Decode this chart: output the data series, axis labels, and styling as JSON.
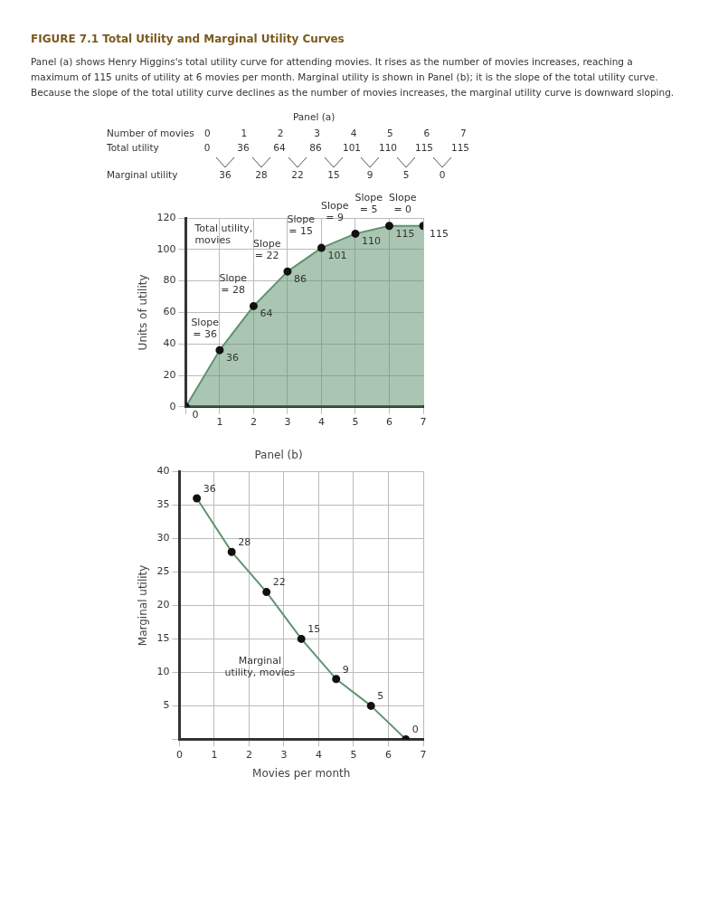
{
  "chart_data": [
    {
      "type": "other",
      "title": "FIGURE 7.1 Total Utility and Marginal Utility Curves",
      "subtitle": "Panel (a) shows Henry Higgins's total utility curve for attending movies. It rises as the number of movies increases, reaching a maximum of 115 units of utility at 6 movies per month. Marginal utility is shown in Panel (b); it is the slope of the total utility curve. Because the slope of the total utility curve declines as the number of movies increases, the marginal utility curve is downward sloping.",
      "annotations": [
        "Panel (a)",
        "Number of movies",
        "0 1 2 3 4 5 6 7",
        "Total utility",
        "0",
        "36",
        "64",
        "86",
        "101",
        "110",
        "115",
        "115",
        "Marginal utility",
        "36",
        "28",
        "22",
        "15",
        "9",
        "5",
        "0"
      ]
    },
    {
      "type": "area",
      "x": [
        0,
        1,
        2,
        3,
        4,
        5,
        6,
        7
      ],
      "series": [
        {
          "color": "#5f9470",
          "values": [
            0,
            36,
            64,
            86,
            101,
            110,
            115,
            115
          ]
        }
      ],
      "xlim": [
        0,
        7
      ],
      "xticks": [
        {
          "value": 0,
          "label": null
        },
        1,
        2,
        3,
        4,
        5,
        6,
        7
      ],
      "ylim": [
        0,
        120
      ],
      "yticks": [
        0,
        20,
        40,
        60,
        80,
        100,
        120
      ],
      "ylabel": "Units of utility",
      "grid": true,
      "marker": "circle",
      "data_labels": true,
      "annotations": [
        "Total utility,\nmovies",
        "Slope\n= 36",
        "Slope\n= 28",
        "Slope\n= 22",
        "Slope\n= 15",
        "Slope\n= 9",
        "Slope\n= 5",
        "Slope\n= 0"
      ]
    },
    {
      "type": "line",
      "title": "Panel (b)",
      "x": [
        0.5,
        1.5,
        2.5,
        3.5,
        4.5,
        5.5,
        6.5
      ],
      "series": [
        {
          "color": "#5f9470",
          "values": [
            36,
            28,
            22,
            15,
            9,
            5,
            0
          ]
        }
      ],
      "xlim": [
        0,
        7
      ],
      "xticks": [
        0,
        1,
        2,
        3,
        4,
        5,
        6,
        7
      ],
      "ylim": [
        0,
        40
      ],
      "yticks": [
        {
          "value": 0,
          "label": null
        },
        5,
        10,
        15,
        20,
        25,
        30,
        35,
        40
      ],
      "xlabel": "Movies per month",
      "ylabel": "Marginal utility",
      "grid": true,
      "marker": "circle",
      "data_labels": true,
      "annotations": [
        "Marginal\nutility, movies"
      ]
    }
  ]
}
